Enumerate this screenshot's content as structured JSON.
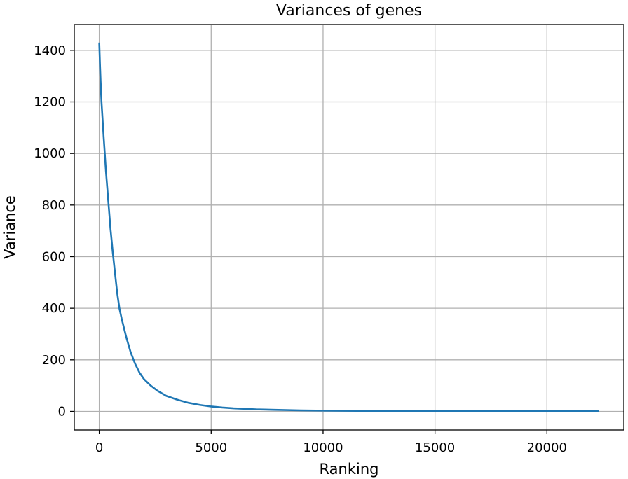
{
  "chart_data": {
    "type": "line",
    "title": "Variances of genes",
    "xlabel": "Ranking",
    "ylabel": "Variance",
    "xlim": [
      -1115,
      23435
    ],
    "ylim": [
      -72,
      1500
    ],
    "xticks": [
      0,
      5000,
      10000,
      15000,
      20000
    ],
    "yticks": [
      0,
      200,
      400,
      600,
      800,
      1000,
      1200,
      1400
    ],
    "grid": true,
    "legend": "none",
    "color": "#1f77b4",
    "series": [
      {
        "x": [
          0,
          30,
          60,
          100,
          150,
          200,
          300,
          400,
          500,
          600,
          700,
          800,
          900,
          1000,
          1200,
          1400,
          1600,
          1800,
          2000,
          2300,
          2600,
          3000,
          3500,
          4000,
          4500,
          5000,
          5500,
          6000,
          7000,
          8000,
          9000,
          10000,
          11000,
          12000,
          13000,
          14000,
          15000,
          16000,
          17000,
          18000,
          19000,
          20000,
          21000,
          22000,
          22320
        ],
        "y": [
          1430,
          1350,
          1280,
          1200,
          1130,
          1060,
          930,
          820,
          710,
          620,
          540,
          460,
          400,
          360,
          290,
          230,
          185,
          150,
          125,
          100,
          80,
          60,
          45,
          33,
          25,
          19,
          15,
          12,
          8,
          6,
          4,
          3,
          2.5,
          2,
          1.7,
          1.5,
          1.3,
          1.1,
          1,
          0.9,
          0.8,
          0.7,
          0.6,
          0.5,
          0.5
        ]
      }
    ]
  }
}
